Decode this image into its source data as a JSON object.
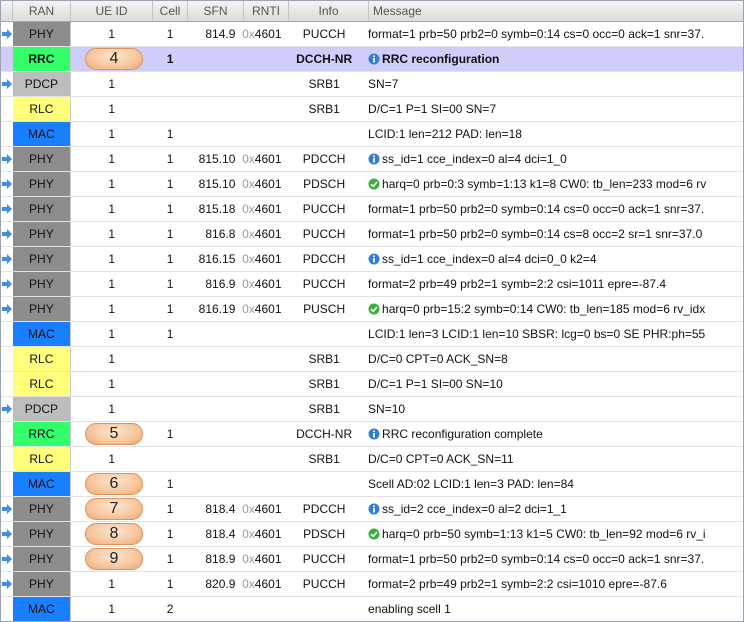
{
  "columns": {
    "ran": "RAN",
    "ue_id": "UE ID",
    "cell": "Cell",
    "sfn": "SFN",
    "rnti": "RNTI",
    "info": "Info",
    "message": "Message"
  },
  "layer_colors": {
    "PHY": "#8c8c8c",
    "RRC": "#33ff6a",
    "PDCP": "#bdbdbd",
    "RLC": "#ffff7a",
    "MAC": "#1a7fff"
  },
  "rows": [
    {
      "ran": "PHY",
      "ue": "1",
      "cell": "1",
      "sfn": "814.9",
      "rnti_pre": "0x",
      "rnti": "4601",
      "info": "PUCCH",
      "icon": "",
      "msg": "format=1 prb=50 prb2=0 symb=0:14 cs=0 occ=0 ack=1 snr=37.",
      "bubble": ""
    },
    {
      "ran": "RRC",
      "ue": "",
      "cell": "1",
      "sfn": "",
      "rnti_pre": "",
      "rnti": "",
      "info": "DCCH-NR",
      "icon": "info",
      "msg": "RRC reconfiguration",
      "bubble": "4",
      "selected": true
    },
    {
      "ran": "PDCP",
      "ue": "1",
      "cell": "",
      "sfn": "",
      "rnti_pre": "",
      "rnti": "",
      "info": "SRB1",
      "icon": "",
      "msg": "SN=7",
      "bubble": ""
    },
    {
      "ran": "RLC",
      "ue": "1",
      "cell": "",
      "sfn": "",
      "rnti_pre": "",
      "rnti": "",
      "info": "SRB1",
      "icon": "",
      "msg": "D/C=1 P=1 SI=00 SN=7",
      "bubble": ""
    },
    {
      "ran": "MAC",
      "ue": "1",
      "cell": "1",
      "sfn": "",
      "rnti_pre": "",
      "rnti": "",
      "info": "",
      "icon": "",
      "msg": "LCID:1 len=212 PAD: len=18",
      "bubble": ""
    },
    {
      "ran": "PHY",
      "ue": "1",
      "cell": "1",
      "sfn": "815.10",
      "rnti_pre": "0x",
      "rnti": "4601",
      "info": "PDCCH",
      "icon": "info",
      "msg": "ss_id=1 cce_index=0 al=4 dci=1_0",
      "bubble": ""
    },
    {
      "ran": "PHY",
      "ue": "1",
      "cell": "1",
      "sfn": "815.10",
      "rnti_pre": "0x",
      "rnti": "4601",
      "info": "PDSCH",
      "icon": "ok",
      "msg": "harq=0 prb=0:3 symb=1:13 k1=8 CW0: tb_len=233 mod=6 rv",
      "bubble": ""
    },
    {
      "ran": "PHY",
      "ue": "1",
      "cell": "1",
      "sfn": "815.18",
      "rnti_pre": "0x",
      "rnti": "4601",
      "info": "PUCCH",
      "icon": "",
      "msg": "format=1 prb=50 prb2=0 symb=0:14 cs=0 occ=0 ack=1 snr=37.",
      "bubble": ""
    },
    {
      "ran": "PHY",
      "ue": "1",
      "cell": "1",
      "sfn": "816.8",
      "rnti_pre": "0x",
      "rnti": "4601",
      "info": "PUCCH",
      "icon": "",
      "msg": "format=1 prb=50 prb2=0 symb=0:14 cs=8 occ=2 sr=1 snr=37.0",
      "bubble": ""
    },
    {
      "ran": "PHY",
      "ue": "1",
      "cell": "1",
      "sfn": "816.15",
      "rnti_pre": "0x",
      "rnti": "4601",
      "info": "PDCCH",
      "icon": "info",
      "msg": "ss_id=1 cce_index=0 al=4 dci=0_0 k2=4",
      "bubble": ""
    },
    {
      "ran": "PHY",
      "ue": "1",
      "cell": "1",
      "sfn": "816.9",
      "rnti_pre": "0x",
      "rnti": "4601",
      "info": "PUCCH",
      "icon": "",
      "msg": "format=2 prb=49 prb2=1 symb=2:2 csi=1011 epre=-87.4",
      "bubble": ""
    },
    {
      "ran": "PHY",
      "ue": "1",
      "cell": "1",
      "sfn": "816.19",
      "rnti_pre": "0x",
      "rnti": "4601",
      "info": "PUSCH",
      "icon": "ok",
      "msg": "harq=0 prb=15:2 symb=0:14 CW0: tb_len=185 mod=6 rv_idx",
      "bubble": ""
    },
    {
      "ran": "MAC",
      "ue": "1",
      "cell": "1",
      "sfn": "",
      "rnti_pre": "",
      "rnti": "",
      "info": "",
      "icon": "",
      "msg": "LCID:1 len=3 LCID:1 len=10 SBSR: lcg=0 bs=0 SE PHR:ph=55",
      "bubble": ""
    },
    {
      "ran": "RLC",
      "ue": "1",
      "cell": "",
      "sfn": "",
      "rnti_pre": "",
      "rnti": "",
      "info": "SRB1",
      "icon": "",
      "msg": "D/C=0 CPT=0 ACK_SN=8",
      "bubble": ""
    },
    {
      "ran": "RLC",
      "ue": "1",
      "cell": "",
      "sfn": "",
      "rnti_pre": "",
      "rnti": "",
      "info": "SRB1",
      "icon": "",
      "msg": "D/C=1 P=1 SI=00 SN=10",
      "bubble": ""
    },
    {
      "ran": "PDCP",
      "ue": "1",
      "cell": "",
      "sfn": "",
      "rnti_pre": "",
      "rnti": "",
      "info": "SRB1",
      "icon": "",
      "msg": "SN=10",
      "bubble": ""
    },
    {
      "ran": "RRC",
      "ue": "",
      "cell": "1",
      "sfn": "",
      "rnti_pre": "",
      "rnti": "",
      "info": "DCCH-NR",
      "icon": "info",
      "msg": "RRC reconfiguration complete",
      "bubble": "5"
    },
    {
      "ran": "RLC",
      "ue": "1",
      "cell": "",
      "sfn": "",
      "rnti_pre": "",
      "rnti": "",
      "info": "SRB1",
      "icon": "",
      "msg": "D/C=0 CPT=0 ACK_SN=11",
      "bubble": ""
    },
    {
      "ran": "MAC",
      "ue": "",
      "cell": "1",
      "sfn": "",
      "rnti_pre": "",
      "rnti": "",
      "info": "",
      "icon": "",
      "msg": "Scell AD:02 LCID:1 len=3 PAD: len=84",
      "bubble": "6"
    },
    {
      "ran": "PHY",
      "ue": "",
      "cell": "1",
      "sfn": "818.4",
      "rnti_pre": "0x",
      "rnti": "4601",
      "info": "PDCCH",
      "icon": "info",
      "msg": "ss_id=2 cce_index=0 al=2 dci=1_1",
      "bubble": "7"
    },
    {
      "ran": "PHY",
      "ue": "",
      "cell": "1",
      "sfn": "818.4",
      "rnti_pre": "0x",
      "rnti": "4601",
      "info": "PDSCH",
      "icon": "ok",
      "msg": "harq=0 prb=50 symb=1:13 k1=5 CW0: tb_len=92 mod=6 rv_i",
      "bubble": "8"
    },
    {
      "ran": "PHY",
      "ue": "",
      "cell": "1",
      "sfn": "818.9",
      "rnti_pre": "0x",
      "rnti": "4601",
      "info": "PUCCH",
      "icon": "",
      "msg": "format=1 prb=50 prb2=0 symb=0:14 cs=0 occ=0 ack=1 snr=37.",
      "bubble": "9"
    },
    {
      "ran": "PHY",
      "ue": "1",
      "cell": "1",
      "sfn": "820.9",
      "rnti_pre": "0x",
      "rnti": "4601",
      "info": "PUCCH",
      "icon": "",
      "msg": "format=2 prb=49 prb2=1 symb=2:2 csi=1010 epre=-87.6",
      "bubble": ""
    },
    {
      "ran": "MAC",
      "ue": "1",
      "cell": "2",
      "sfn": "",
      "rnti_pre": "",
      "rnti": "",
      "info": "",
      "icon": "",
      "msg": "enabling scell 1",
      "bubble": ""
    }
  ]
}
